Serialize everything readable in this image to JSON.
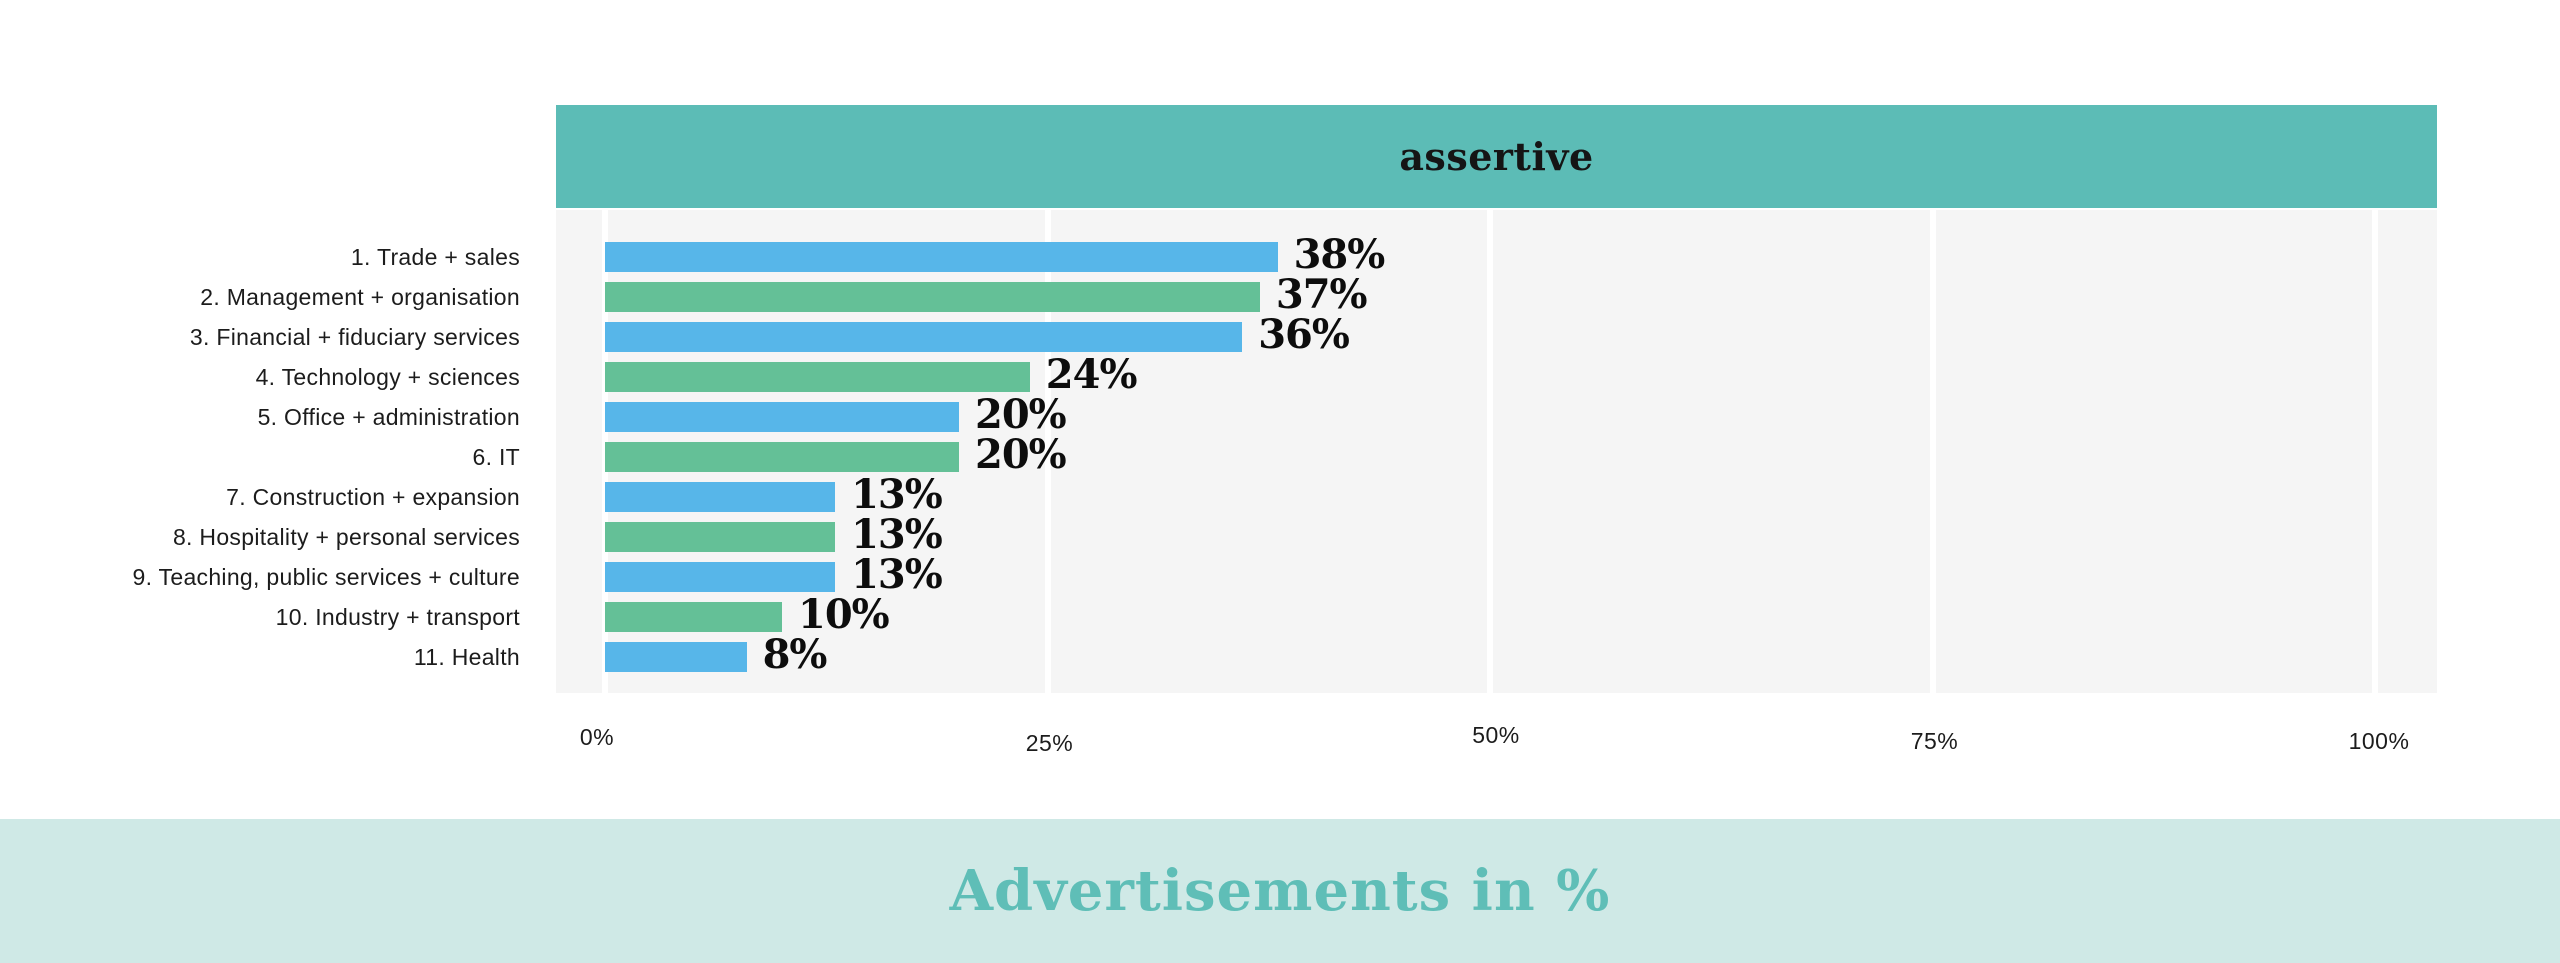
{
  "header": {
    "title": "assertive",
    "bg_color": "#5cbcb6",
    "text_color": "#151515"
  },
  "chart_data": {
    "type": "bar",
    "orientation": "horizontal",
    "title": "assertive",
    "categories": [
      "1. Trade + sales",
      "2. Management + organisation",
      "3. Financial + fiduciary services",
      "4. Technology + sciences",
      "5. Office + administration",
      "6. IT",
      "7. Construction + expansion",
      "8. Hospitality + personal services",
      "9. Teaching, public services + culture",
      "10. Industry + transport",
      "11. Health"
    ],
    "values": [
      38,
      37,
      36,
      24,
      20,
      20,
      13,
      13,
      13,
      10,
      8
    ],
    "value_labels": [
      "38%",
      "37%",
      "36%",
      "24%",
      "20%",
      "20%",
      "13%",
      "13%",
      "13%",
      "10%",
      "8%"
    ],
    "value_suffix": "%",
    "bar_colors_alternating": [
      "#57b6e9",
      "#64c097"
    ],
    "xlabel": "",
    "ylabel": "",
    "x_ticks": [
      "0%",
      "25%",
      "50%",
      "75%",
      "100%"
    ],
    "xlim": [
      0,
      100
    ],
    "grid": "vertical",
    "gridline_color": "#ffffff",
    "plot_bg_color": "#f5f5f5",
    "legend": "none"
  },
  "footer": {
    "caption": "Advertisements in %",
    "bg_color": "#cfe9e6",
    "text_color": "#5fbeb7"
  }
}
